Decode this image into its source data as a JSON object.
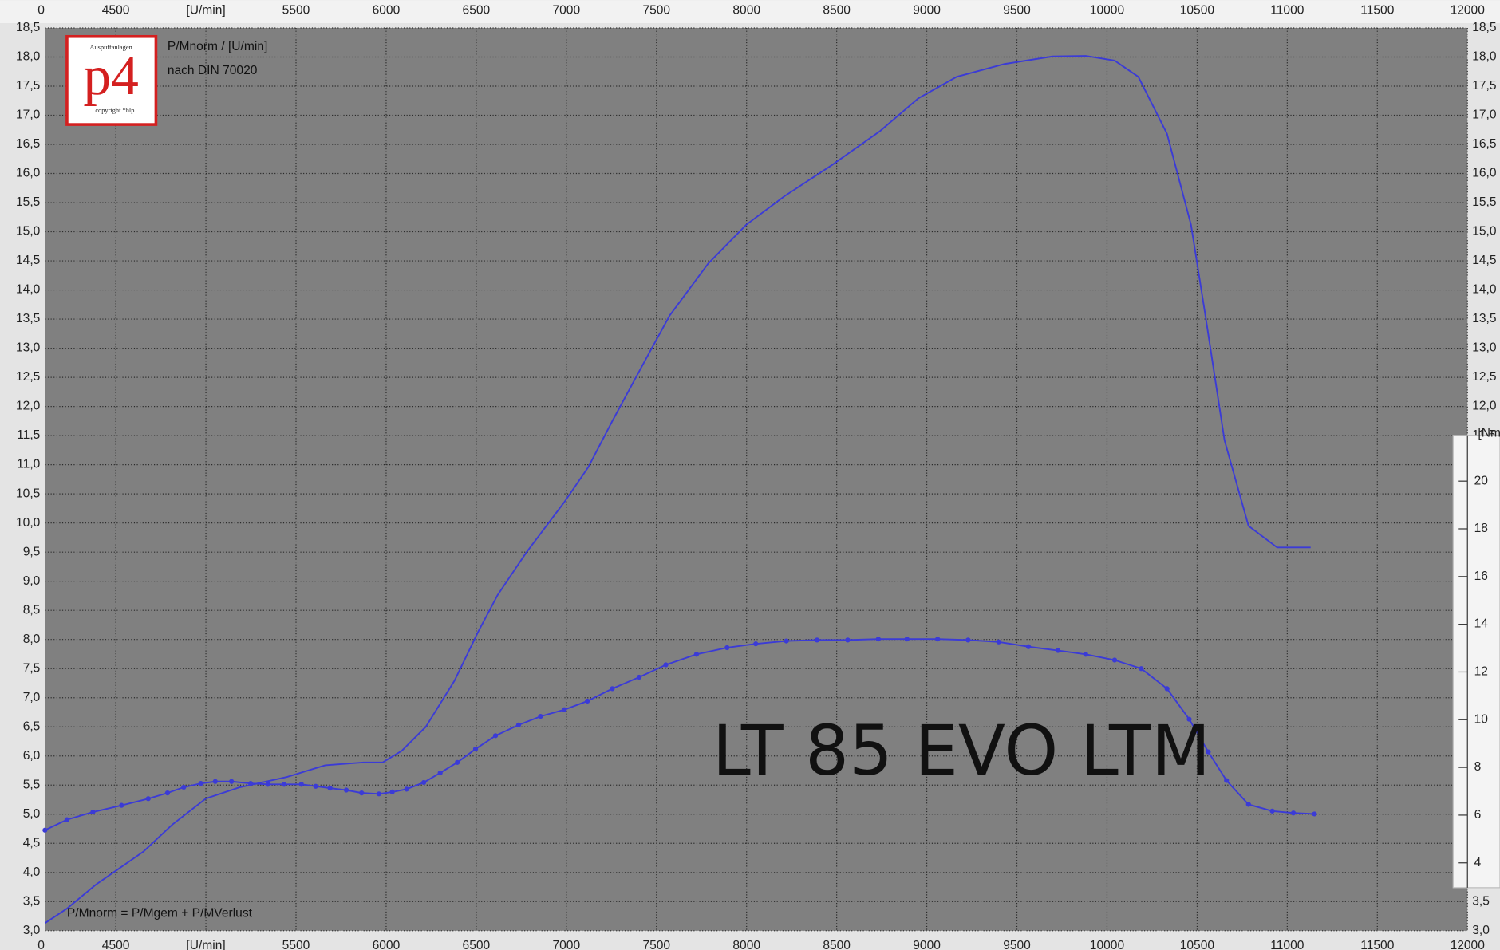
{
  "chart_data": {
    "type": "line",
    "title": "LT 85 EVO LTM",
    "annotations": [
      "P/Mnorm / [U/min]",
      "nach DIN 70020",
      "P/Mnorm = P/Mgem + P/MVerlust"
    ],
    "logo": {
      "text": "p4",
      "top_text": "Auspuffanlagen",
      "bottom_text": "copyright *hlp"
    },
    "corner_label": "0",
    "y2_label": "[Nm]",
    "grid": true,
    "xlim": [
      4107,
      12000
    ],
    "xticks": [
      4500,
      {
        "value": 5000,
        "label": "[U/min]"
      },
      5500,
      6000,
      6500,
      7000,
      7500,
      8000,
      8500,
      9000,
      9500,
      10000,
      10500,
      11000,
      11500,
      12000
    ],
    "ylim": [
      3.0,
      18.5
    ],
    "yticks": [
      {
        "value": 3.0,
        "label": "3,0"
      },
      {
        "value": 3.5,
        "label": "3,5"
      },
      {
        "value": 4.0,
        "label": "4,0"
      },
      {
        "value": 4.5,
        "label": "4,5"
      },
      {
        "value": 5.0,
        "label": "5,0"
      },
      {
        "value": 5.5,
        "label": "5,5"
      },
      {
        "value": 6.0,
        "label": "6,0"
      },
      {
        "value": 6.5,
        "label": "6,5"
      },
      {
        "value": 7.0,
        "label": "7,0"
      },
      {
        "value": 7.5,
        "label": "7,5"
      },
      {
        "value": 8.0,
        "label": "8,0"
      },
      {
        "value": 8.5,
        "label": "8,5"
      },
      {
        "value": 9.0,
        "label": "9,0"
      },
      {
        "value": 9.5,
        "label": "9,5"
      },
      {
        "value": 10.0,
        "label": "10,0"
      },
      {
        "value": 10.5,
        "label": "10,5"
      },
      {
        "value": 11.0,
        "label": "11,0"
      },
      {
        "value": 11.5,
        "label": "11,5"
      },
      {
        "value": 12.0,
        "label": "12,0"
      },
      {
        "value": 12.5,
        "label": "12,5"
      },
      {
        "value": 13.0,
        "label": "13,0"
      },
      {
        "value": 13.5,
        "label": "13,5"
      },
      {
        "value": 14.0,
        "label": "14,0"
      },
      {
        "value": 14.5,
        "label": "14,5"
      },
      {
        "value": 15.0,
        "label": "15,0"
      },
      {
        "value": 15.5,
        "label": "15,5"
      },
      {
        "value": 16.0,
        "label": "16,0"
      },
      {
        "value": 16.5,
        "label": "16,5"
      },
      {
        "value": 17.0,
        "label": "17,0"
      },
      {
        "value": 17.5,
        "label": "17,5"
      },
      {
        "value": 18.0,
        "label": "18,0"
      },
      {
        "value": 18.5,
        "label": "18,5"
      }
    ],
    "y2lim": [
      2.96,
      21.92
    ],
    "y2ticks": [
      4,
      6,
      8,
      10,
      12,
      14,
      16,
      18,
      20
    ],
    "series": [
      {
        "color": "#3b3bd6",
        "markers": false,
        "x": [
          4107,
          4229,
          4389,
          4654,
          4813,
          5000,
          5185,
          5450,
          5662,
          5875,
          5981,
          6087,
          6220,
          6379,
          6512,
          6618,
          6777,
          6989,
          7122,
          7255,
          7414,
          7573,
          7786,
          7998,
          8210,
          8476,
          8741,
          8953,
          9166,
          9431,
          9697,
          9882,
          10042,
          10174,
          10333,
          10466,
          10546,
          10652,
          10785,
          10944,
          11130
        ],
        "values": [
          3.13,
          3.38,
          3.79,
          4.36,
          4.82,
          5.27,
          5.46,
          5.64,
          5.84,
          5.89,
          5.89,
          6.09,
          6.5,
          7.29,
          8.14,
          8.76,
          9.49,
          10.36,
          10.96,
          11.75,
          12.66,
          13.56,
          14.45,
          15.12,
          15.61,
          16.15,
          16.73,
          17.29,
          17.66,
          17.88,
          18.01,
          18.02,
          17.94,
          17.66,
          16.68,
          15.12,
          13.56,
          11.42,
          9.95,
          9.58,
          9.58
        ]
      },
      {
        "color": "#3b3bd6",
        "markers": true,
        "axis": "y2",
        "x": [
          4107,
          4229,
          4373,
          4532,
          4680,
          4787,
          4877,
          4972,
          5052,
          5142,
          5248,
          5344,
          5434,
          5530,
          5609,
          5689,
          5779,
          5864,
          5960,
          6034,
          6114,
          6209,
          6300,
          6395,
          6496,
          6607,
          6735,
          6857,
          6989,
          7117,
          7255,
          7404,
          7552,
          7722,
          7892,
          8051,
          8221,
          8391,
          8561,
          8731,
          8890,
          9060,
          9229,
          9399,
          9564,
          9728,
          9882,
          10042,
          10190,
          10333,
          10456,
          10562,
          10663,
          10785,
          10917,
          11034,
          11151
        ],
        "values": [
          5.37,
          5.81,
          6.13,
          6.41,
          6.69,
          6.93,
          7.17,
          7.33,
          7.41,
          7.41,
          7.33,
          7.29,
          7.29,
          7.29,
          7.21,
          7.13,
          7.05,
          6.93,
          6.89,
          6.97,
          7.09,
          7.37,
          7.77,
          8.21,
          8.77,
          9.33,
          9.78,
          10.14,
          10.42,
          10.78,
          11.3,
          11.78,
          12.3,
          12.74,
          13.02,
          13.18,
          13.3,
          13.34,
          13.34,
          13.38,
          13.38,
          13.38,
          13.34,
          13.26,
          13.06,
          12.9,
          12.74,
          12.5,
          12.14,
          11.3,
          10.02,
          8.65,
          7.45,
          6.45,
          6.17,
          6.09,
          6.05
        ]
      }
    ]
  }
}
